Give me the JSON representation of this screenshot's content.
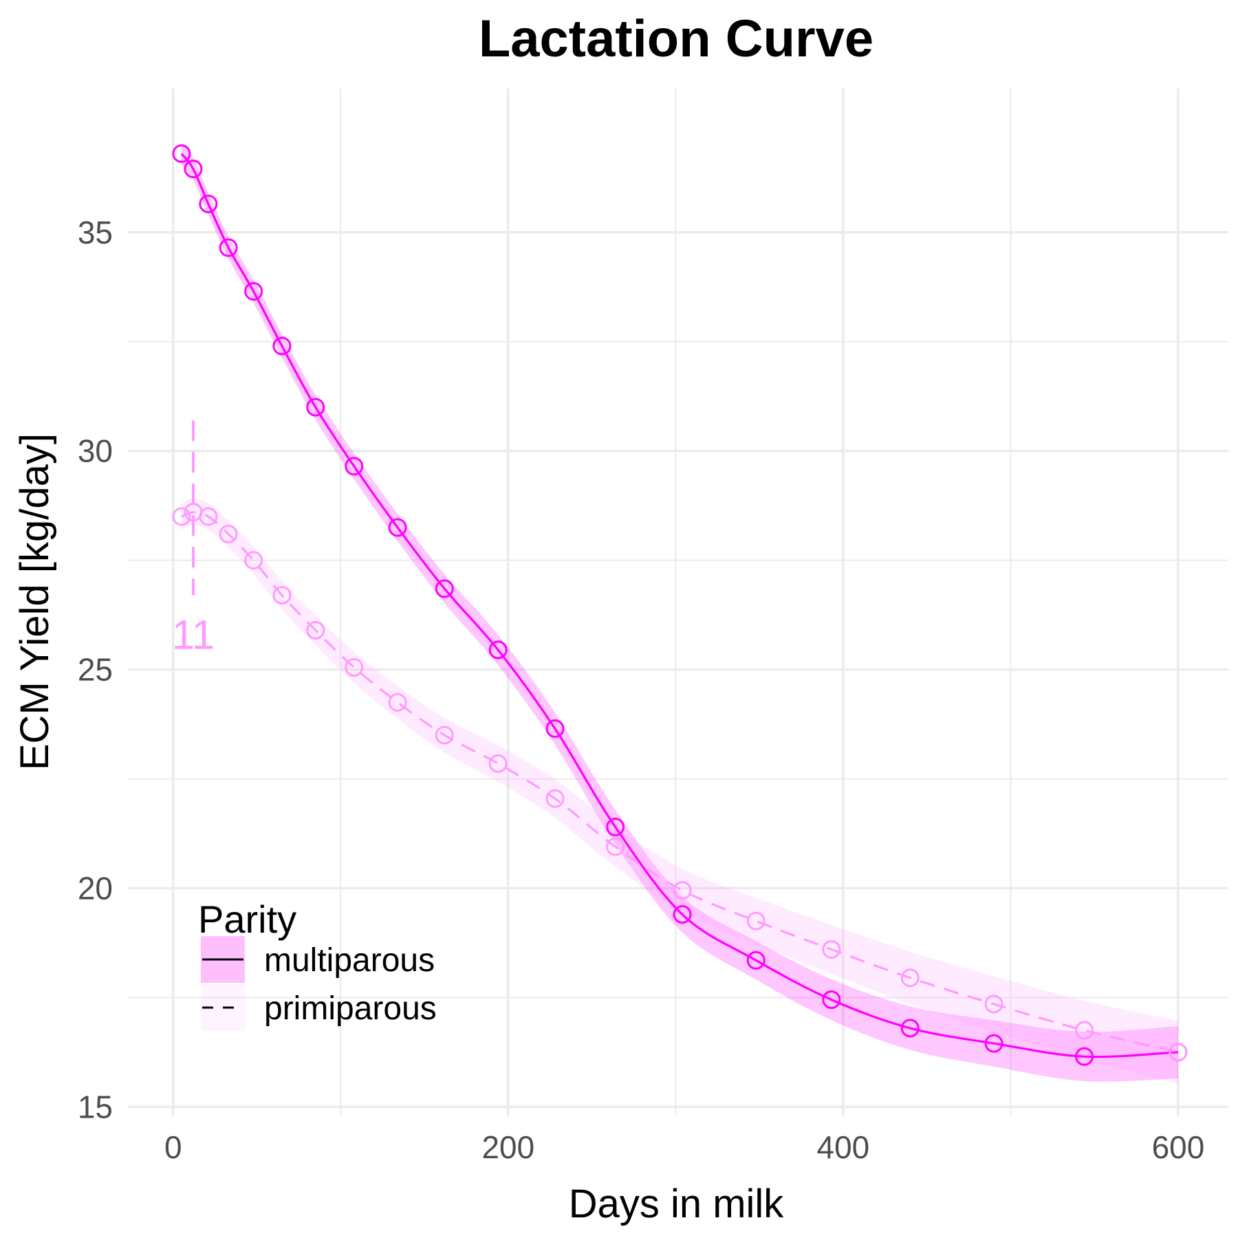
{
  "chart_data": {
    "type": "line",
    "title": "Lactation Curve",
    "xlabel": "Days in milk",
    "ylabel": "ECM Yield [kg/day]",
    "xlim": [
      -27,
      630
    ],
    "ylim": [
      14.8,
      38.3
    ],
    "x_ticks": [
      0,
      200,
      400,
      600
    ],
    "y_ticks": [
      15,
      20,
      25,
      30,
      35
    ],
    "grid": true,
    "legend": {
      "title": "Parity",
      "position": "bottom-left"
    },
    "series": [
      {
        "name": "multiparous",
        "color": "#ff00ff",
        "line_style": "solid",
        "x": [
          5,
          12,
          21,
          33,
          48,
          65,
          85,
          108,
          134,
          162,
          194,
          228,
          264,
          304,
          348,
          393,
          440,
          490,
          544,
          600
        ],
        "y": [
          36.8,
          36.45,
          35.65,
          34.65,
          33.65,
          32.4,
          31.0,
          29.65,
          28.25,
          26.85,
          25.45,
          23.65,
          21.4,
          19.4,
          18.35,
          17.45,
          16.8,
          16.45,
          16.15,
          16.25
        ],
        "band": 0.25
      },
      {
        "name": "primiparous",
        "color": "#ff9bff",
        "line_style": "dashed",
        "x": [
          5,
          12,
          21,
          33,
          48,
          65,
          85,
          108,
          134,
          162,
          194,
          228,
          264,
          304,
          348,
          393,
          440,
          490,
          544,
          600
        ],
        "y": [
          28.5,
          28.6,
          28.5,
          28.1,
          27.5,
          26.7,
          25.9,
          25.05,
          24.25,
          23.5,
          22.85,
          22.05,
          20.95,
          19.95,
          19.25,
          18.6,
          17.95,
          17.35,
          16.75,
          16.25
        ],
        "band": 0.3
      }
    ],
    "annotations": [
      {
        "type": "vline",
        "series": "primiparous",
        "x": 12,
        "y_from": 26.7,
        "y_to": 30.7,
        "label": "11"
      }
    ]
  }
}
